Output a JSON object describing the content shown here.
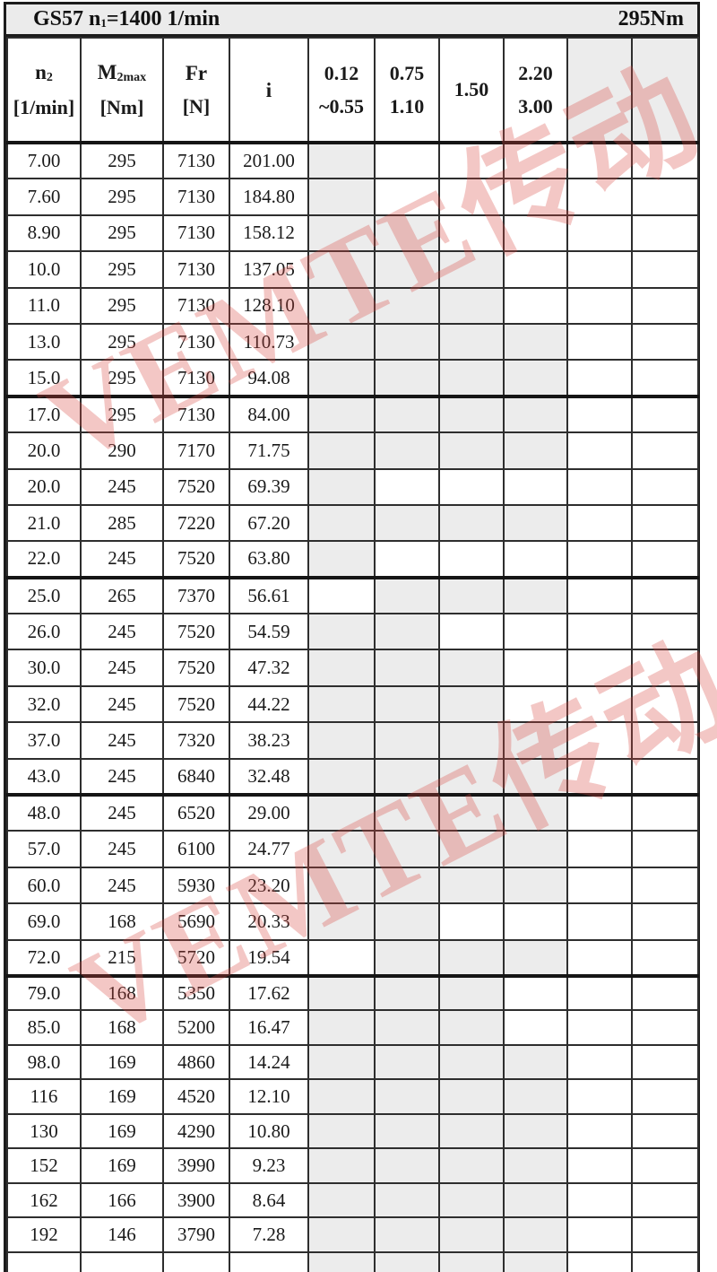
{
  "title": {
    "model": "GS57",
    "n_symbol": "n",
    "n_sub": "1",
    "n_value": "=1400 1/min",
    "torque": "295Nm"
  },
  "watermark": {
    "text": "VEMTE传动",
    "color": "#d84640"
  },
  "colors": {
    "shaded_cell": "#ececec",
    "border": "#2e2e2e",
    "title_bg": "#ebebeb"
  },
  "table": {
    "columns": [
      {
        "symbol": "n",
        "symbol_sub": "2",
        "unit": "[1/min]"
      },
      {
        "symbol": "M",
        "symbol_sub": "2max",
        "unit": "[Nm]"
      },
      {
        "symbol": "Fr",
        "symbol_sub": "",
        "unit": "[N]"
      },
      {
        "symbol": "i",
        "symbol_sub": "",
        "unit": ""
      },
      {
        "line1": "0.12",
        "line2": "~0.55",
        "shaded": false
      },
      {
        "line1": "0.75",
        "line2": "1.10",
        "shaded": false
      },
      {
        "line1": "1.50",
        "line2": "",
        "shaded": false
      },
      {
        "line1": "2.20",
        "line2": "3.00",
        "shaded": false
      },
      {
        "line1": "",
        "line2": "",
        "shaded": true
      },
      {
        "line1": "",
        "line2": "",
        "shaded": true
      }
    ],
    "rows": [
      {
        "n2": "7.00",
        "m2max": "295",
        "fr": "7130",
        "i": "201.00",
        "power": [
          1,
          0,
          0,
          0,
          0,
          0
        ],
        "thick_below": false
      },
      {
        "n2": "7.60",
        "m2max": "295",
        "fr": "7130",
        "i": "184.80",
        "power": [
          1,
          0,
          0,
          0,
          0,
          0
        ],
        "thick_below": false
      },
      {
        "n2": "8.90",
        "m2max": "295",
        "fr": "7130",
        "i": "158.12",
        "power": [
          1,
          1,
          0,
          0,
          0,
          0
        ],
        "thick_below": false
      },
      {
        "n2": "10.0",
        "m2max": "295",
        "fr": "7130",
        "i": "137.05",
        "power": [
          1,
          1,
          1,
          0,
          0,
          0
        ],
        "thick_below": false
      },
      {
        "n2": "11.0",
        "m2max": "295",
        "fr": "7130",
        "i": "128.10",
        "power": [
          1,
          1,
          1,
          0,
          0,
          0
        ],
        "thick_below": false
      },
      {
        "n2": "13.0",
        "m2max": "295",
        "fr": "7130",
        "i": "110.73",
        "power": [
          1,
          1,
          1,
          1,
          0,
          0
        ],
        "thick_below": false
      },
      {
        "n2": "15.0",
        "m2max": "295",
        "fr": "7130",
        "i": "94.08",
        "power": [
          1,
          1,
          1,
          1,
          0,
          0
        ],
        "thick_below": true
      },
      {
        "n2": "17.0",
        "m2max": "295",
        "fr": "7130",
        "i": "84.00",
        "power": [
          1,
          1,
          1,
          1,
          0,
          0
        ],
        "thick_below": false
      },
      {
        "n2": "20.0",
        "m2max": "290",
        "fr": "7170",
        "i": "71.75",
        "power": [
          1,
          1,
          1,
          1,
          0,
          0
        ],
        "thick_below": false
      },
      {
        "n2": "20.0",
        "m2max": "245",
        "fr": "7520",
        "i": "69.39",
        "power": [
          1,
          0,
          0,
          0,
          0,
          0
        ],
        "thick_below": false
      },
      {
        "n2": "21.0",
        "m2max": "285",
        "fr": "7220",
        "i": "67.20",
        "power": [
          1,
          1,
          1,
          1,
          0,
          0
        ],
        "thick_below": false
      },
      {
        "n2": "22.0",
        "m2max": "245",
        "fr": "7520",
        "i": "63.80",
        "power": [
          1,
          0,
          0,
          0,
          0,
          0
        ],
        "thick_below": true
      },
      {
        "n2": "25.0",
        "m2max": "265",
        "fr": "7370",
        "i": "56.61",
        "power": [
          0,
          1,
          1,
          1,
          0,
          0
        ],
        "thick_below": false
      },
      {
        "n2": "26.0",
        "m2max": "245",
        "fr": "7520",
        "i": "54.59",
        "power": [
          1,
          1,
          0,
          0,
          0,
          0
        ],
        "thick_below": false
      },
      {
        "n2": "30.0",
        "m2max": "245",
        "fr": "7520",
        "i": "47.32",
        "power": [
          1,
          1,
          1,
          0,
          0,
          0
        ],
        "thick_below": false
      },
      {
        "n2": "32.0",
        "m2max": "245",
        "fr": "7520",
        "i": "44.22",
        "power": [
          1,
          1,
          1,
          0,
          0,
          0
        ],
        "thick_below": false
      },
      {
        "n2": "37.0",
        "m2max": "245",
        "fr": "7320",
        "i": "38.23",
        "power": [
          1,
          1,
          1,
          1,
          0,
          0
        ],
        "thick_below": false
      },
      {
        "n2": "43.0",
        "m2max": "245",
        "fr": "6840",
        "i": "32.48",
        "power": [
          1,
          1,
          1,
          1,
          0,
          0
        ],
        "thick_below": true
      },
      {
        "n2": "48.0",
        "m2max": "245",
        "fr": "6520",
        "i": "29.00",
        "power": [
          1,
          1,
          1,
          1,
          0,
          0
        ],
        "thick_below": false
      },
      {
        "n2": "57.0",
        "m2max": "245",
        "fr": "6100",
        "i": "24.77",
        "power": [
          1,
          1,
          1,
          1,
          0,
          0
        ],
        "thick_below": false
      },
      {
        "n2": "60.0",
        "m2max": "245",
        "fr": "5930",
        "i": "23.20",
        "power": [
          1,
          1,
          1,
          1,
          0,
          0
        ],
        "thick_below": false
      },
      {
        "n2": "69.0",
        "m2max": "168",
        "fr": "5690",
        "i": "20.33",
        "power": [
          1,
          1,
          0,
          0,
          0,
          0
        ],
        "thick_below": false
      },
      {
        "n2": "72.0",
        "m2max": "215",
        "fr": "5720",
        "i": "19.54",
        "power": [
          0,
          1,
          1,
          1,
          0,
          0
        ],
        "thick_below": true
      },
      {
        "n2": "79.0",
        "m2max": "168",
        "fr": "5350",
        "i": "17.62",
        "power": [
          1,
          1,
          1,
          0,
          0,
          0
        ],
        "thick_below": false
      },
      {
        "n2": "85.0",
        "m2max": "168",
        "fr": "5200",
        "i": "16.47",
        "power": [
          1,
          1,
          1,
          0,
          0,
          0
        ],
        "thick_below": false
      },
      {
        "n2": "98.0",
        "m2max": "169",
        "fr": "4860",
        "i": "14.24",
        "power": [
          1,
          1,
          1,
          1,
          0,
          0
        ],
        "thick_below": false
      },
      {
        "n2": "116",
        "m2max": "169",
        "fr": "4520",
        "i": "12.10",
        "power": [
          1,
          1,
          1,
          1,
          0,
          0
        ],
        "thick_below": false
      },
      {
        "n2": "130",
        "m2max": "169",
        "fr": "4290",
        "i": "10.80",
        "power": [
          1,
          1,
          1,
          1,
          0,
          0
        ],
        "thick_below": false
      },
      {
        "n2": "152",
        "m2max": "169",
        "fr": "3990",
        "i": "9.23",
        "power": [
          1,
          1,
          1,
          1,
          0,
          0
        ],
        "thick_below": false
      },
      {
        "n2": "162",
        "m2max": "166",
        "fr": "3900",
        "i": "8.64",
        "power": [
          1,
          1,
          1,
          1,
          0,
          0
        ],
        "thick_below": false
      },
      {
        "n2": "192",
        "m2max": "146",
        "fr": "3790",
        "i": "7.28",
        "power": [
          1,
          1,
          1,
          1,
          0,
          0
        ],
        "thick_below": false
      }
    ],
    "partial_row": {
      "n2": "",
      "m2max": "",
      "fr": "",
      "i": "",
      "power": [
        1,
        1,
        1,
        1,
        0,
        0
      ]
    }
  }
}
